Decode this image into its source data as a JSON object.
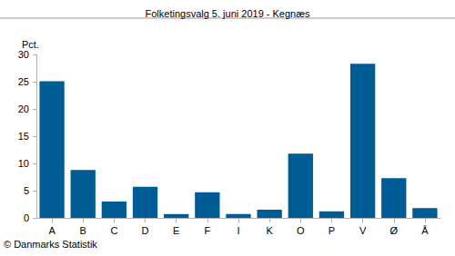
{
  "chart_data": {
    "type": "bar",
    "title": "Folketingsvalg 5. juni 2019 - Kegnæs",
    "ylabel": "Pct.",
    "annotation": "© Danmarks Statistik",
    "categories": [
      "A",
      "B",
      "C",
      "D",
      "E",
      "F",
      "I",
      "K",
      "O",
      "P",
      "V",
      "Ø",
      "Å"
    ],
    "values": [
      25.1,
      8.8,
      3.0,
      5.7,
      0.7,
      4.7,
      0.7,
      1.5,
      11.8,
      1.2,
      28.3,
      7.3,
      1.8
    ],
    "color": "#005c94",
    "ylim": [
      0,
      30
    ],
    "yticks": [
      0,
      5,
      10,
      15,
      20,
      25,
      30
    ],
    "grid": false
  }
}
